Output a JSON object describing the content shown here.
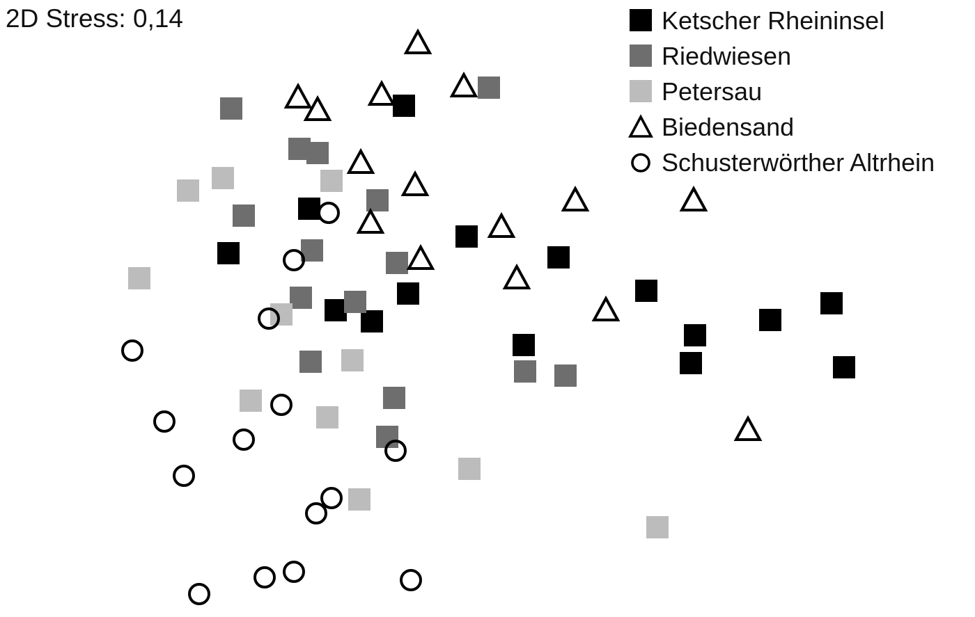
{
  "chart_data": {
    "type": "scatter",
    "title": "2D Stress: 0,14",
    "xlabel": "",
    "ylabel": "",
    "axes_visible": false,
    "grid": false,
    "legend_position": "top-right",
    "series": [
      {
        "name": "Ketscher Rheininsel",
        "marker": "square",
        "color": "#000000",
        "points": [
          [
            580,
            152
          ],
          [
            444,
            300
          ],
          [
            328,
            364
          ],
          [
            670,
            340
          ],
          [
            802,
            370
          ],
          [
            586,
            422
          ],
          [
            482,
            446
          ],
          [
            534,
            462
          ],
          [
            928,
            418
          ],
          [
            752,
            496
          ],
          [
            998,
            482
          ],
          [
            992,
            522
          ],
          [
            1106,
            460
          ],
          [
            1194,
            436
          ],
          [
            1212,
            528
          ]
        ]
      },
      {
        "name": "Riedwiesen",
        "marker": "square",
        "color": "#6e6e6e",
        "points": [
          [
            332,
            156
          ],
          [
            702,
            126
          ],
          [
            430,
            214
          ],
          [
            456,
            220
          ],
          [
            542,
            288
          ],
          [
            350,
            310
          ],
          [
            448,
            360
          ],
          [
            570,
            378
          ],
          [
            432,
            428
          ],
          [
            510,
            434
          ],
          [
            446,
            520
          ],
          [
            754,
            534
          ],
          [
            812,
            540
          ],
          [
            566,
            572
          ],
          [
            556,
            628
          ]
        ]
      },
      {
        "name": "Petersau",
        "marker": "square",
        "color": "#bcbcbc",
        "points": [
          [
            270,
            274
          ],
          [
            320,
            256
          ],
          [
            476,
            260
          ],
          [
            200,
            400
          ],
          [
            404,
            452
          ],
          [
            506,
            518
          ],
          [
            360,
            576
          ],
          [
            470,
            600
          ],
          [
            674,
            674
          ],
          [
            516,
            718
          ],
          [
            944,
            758
          ]
        ]
      },
      {
        "name": "Biedensand",
        "marker": "triangle",
        "color": "#000000",
        "points": [
          [
            600,
            62
          ],
          [
            428,
            140
          ],
          [
            456,
            158
          ],
          [
            548,
            136
          ],
          [
            666,
            124
          ],
          [
            518,
            234
          ],
          [
            596,
            266
          ],
          [
            532,
            320
          ],
          [
            720,
            326
          ],
          [
            826,
            288
          ],
          [
            996,
            288
          ],
          [
            604,
            372
          ],
          [
            742,
            400
          ],
          [
            870,
            446
          ],
          [
            1074,
            618
          ]
        ]
      },
      {
        "name": "Schusterwörther Altrhein",
        "marker": "circle",
        "color": "#000000",
        "points": [
          [
            472,
            306
          ],
          [
            422,
            374
          ],
          [
            386,
            458
          ],
          [
            190,
            504
          ],
          [
            236,
            606
          ],
          [
            404,
            582
          ],
          [
            350,
            632
          ],
          [
            568,
            648
          ],
          [
            264,
            684
          ],
          [
            476,
            716
          ],
          [
            454,
            738
          ],
          [
            380,
            830
          ],
          [
            422,
            822
          ],
          [
            590,
            834
          ],
          [
            286,
            854
          ]
        ]
      }
    ]
  }
}
